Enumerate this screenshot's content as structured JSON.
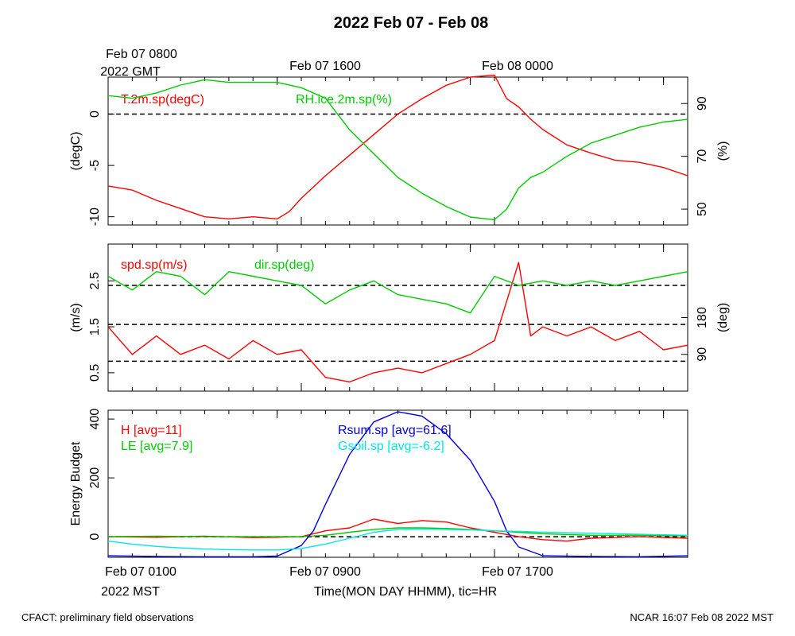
{
  "title": "2022 Feb 07 - Feb 08",
  "top_axis": {
    "ticks": [
      "Feb 07 0800",
      "Feb 07 1600",
      "Feb 08 0000"
    ],
    "second_line": "2022 GMT"
  },
  "bottom_axis": {
    "ticks": [
      "Feb 07 0100",
      "Feb 07 0900",
      "Feb 07 1700"
    ],
    "second_line": "2022 MST",
    "label": "Time(MON DAY HHMM), tic=HR"
  },
  "footer": {
    "left": "CFACT: preliminary field observations",
    "right": "NCAR 16:07 Feb 08 2022 MST"
  },
  "colors": {
    "red": "#ff0000",
    "green": "#00cc00",
    "blue": "#0000dd",
    "cyan": "#00e6e6",
    "axis": "#000000"
  },
  "chart_data": [
    {
      "type": "line",
      "x_hours": [
        0,
        24
      ],
      "left_axis": {
        "label": "(degC)",
        "ylim": [
          -10.8,
          3.6
        ],
        "ticks": [
          0,
          -5,
          -10
        ],
        "ref_lines": [
          0
        ]
      },
      "right_axis": {
        "label": "(%)",
        "ylim": [
          44,
          100
        ],
        "ticks": [
          90,
          70,
          50
        ]
      },
      "series": [
        {
          "name": "T.2m.sp(degC)",
          "color": "red",
          "axis": "left",
          "x": [
            0,
            1,
            2,
            3,
            4,
            5,
            6,
            7,
            7.5,
            8,
            9,
            10,
            11,
            12,
            13,
            14,
            15,
            16,
            16.5,
            17,
            17.5,
            18,
            19,
            20,
            21,
            22,
            23,
            24
          ],
          "values": [
            -7,
            -7.4,
            -8.4,
            -9.2,
            -10,
            -10.2,
            -10,
            -10.2,
            -9.5,
            -8.2,
            -6,
            -4,
            -2,
            0,
            1.5,
            2.8,
            3.6,
            3.8,
            1.5,
            0.7,
            -0.5,
            -1.5,
            -3,
            -3.8,
            -4.5,
            -4.7,
            -5.2,
            -6
          ]
        },
        {
          "name": "RH.ice.2m.sp(%)",
          "color": "green",
          "axis": "right",
          "x": [
            0,
            1,
            2,
            3,
            4,
            5,
            6,
            7,
            8,
            9,
            10,
            11,
            12,
            13,
            14,
            15,
            16,
            16.5,
            17,
            17.5,
            18,
            19,
            20,
            21,
            22,
            23,
            24
          ],
          "values": [
            93,
            92,
            94,
            97,
            99,
            98,
            98,
            98,
            96,
            92,
            80,
            71,
            62,
            56,
            51,
            47,
            46,
            50,
            58,
            62,
            64,
            70,
            75,
            78,
            81,
            83,
            84
          ]
        }
      ]
    },
    {
      "type": "line",
      "x_hours": [
        0,
        24
      ],
      "left_axis": {
        "label": "(m/s)",
        "ylim": [
          0.1,
          3.3
        ],
        "ticks": [
          0.5,
          1.5,
          2.5
        ],
        "ref_lines": [
          0.75,
          1.55,
          2.4
        ]
      },
      "right_axis": {
        "label": "(deg)",
        "ylim": [
          0,
          360
        ],
        "ticks": [
          90,
          180
        ]
      },
      "series": [
        {
          "name": "spd.sp(m/s)",
          "color": "red",
          "axis": "left",
          "x": [
            0,
            1,
            2,
            3,
            4,
            5,
            6,
            7,
            8,
            9,
            10,
            11,
            12,
            13,
            14,
            15,
            16,
            17,
            17.5,
            18,
            19,
            20,
            21,
            22,
            23,
            24
          ],
          "values": [
            1.5,
            0.9,
            1.3,
            0.9,
            1.1,
            0.8,
            1.2,
            0.9,
            1.0,
            0.4,
            0.3,
            0.5,
            0.6,
            0.5,
            0.7,
            0.9,
            1.2,
            2.9,
            1.3,
            1.5,
            1.3,
            1.5,
            1.2,
            1.4,
            1.0,
            1.1
          ]
        },
        {
          "name": "dir.sp(deg)",
          "color": "green",
          "axis": "left",
          "x": [
            0,
            1,
            2,
            3,
            4,
            5,
            6,
            7,
            8,
            9,
            10,
            11,
            12,
            13,
            14,
            15,
            16,
            17,
            18,
            19,
            20,
            21,
            22,
            23,
            24
          ],
          "values": [
            2.6,
            2.3,
            2.7,
            2.6,
            2.2,
            2.7,
            2.6,
            2.5,
            2.4,
            2.0,
            2.3,
            2.5,
            2.2,
            2.1,
            2.0,
            1.8,
            2.6,
            2.4,
            2.5,
            2.4,
            2.5,
            2.4,
            2.5,
            2.6,
            2.7
          ]
        }
      ]
    },
    {
      "type": "line",
      "x_hours": [
        0,
        24
      ],
      "left_axis": {
        "label": "Energy Budget",
        "ylim": [
          -70,
          430
        ],
        "ticks": [
          0,
          200,
          400
        ],
        "ref_lines": [
          0
        ]
      },
      "series": [
        {
          "name": "H [avg=11]",
          "color": "red",
          "x": [
            0,
            2,
            4,
            6,
            7,
            8,
            9,
            10,
            11,
            12,
            13,
            14,
            15,
            16,
            17,
            18,
            19,
            20,
            22,
            24
          ],
          "values": [
            0,
            -2,
            2,
            -3,
            -2,
            0,
            20,
            30,
            60,
            45,
            55,
            50,
            30,
            15,
            0,
            -10,
            -15,
            -5,
            0,
            -5
          ]
        },
        {
          "name": "LE [avg=7.9]",
          "color": "green",
          "x": [
            0,
            2,
            4,
            6,
            7,
            8,
            9,
            10,
            11,
            12,
            13,
            14,
            15,
            16,
            17,
            18,
            20,
            22,
            24
          ],
          "values": [
            0,
            2,
            0,
            0,
            0,
            0,
            5,
            15,
            25,
            30,
            30,
            28,
            25,
            20,
            15,
            10,
            5,
            5,
            3
          ]
        },
        {
          "name": "Rsum.sp [avg=61.6]",
          "color": "blue",
          "x": [
            0,
            2,
            4,
            6,
            7,
            8,
            8.5,
            9,
            10,
            11,
            12,
            13,
            14,
            15,
            16,
            16.5,
            17,
            18,
            20,
            22,
            24
          ],
          "values": [
            -65,
            -67,
            -68,
            -68,
            -66,
            -30,
            20,
            110,
            280,
            390,
            425,
            410,
            350,
            260,
            120,
            20,
            -35,
            -65,
            -67,
            -68,
            -65
          ]
        },
        {
          "name": "Gsoil.sp [avg=-6.2]",
          "color": "cyan",
          "x": [
            0,
            1,
            2,
            3,
            4,
            5,
            6,
            7,
            8,
            9,
            10,
            11,
            12,
            13,
            14,
            15,
            16,
            17,
            18,
            20,
            22,
            24
          ],
          "values": [
            -15,
            -25,
            -33,
            -38,
            -42,
            -44,
            -45,
            -45,
            -40,
            -25,
            -5,
            15,
            25,
            26,
            25,
            23,
            20,
            18,
            15,
            12,
            8,
            5
          ]
        }
      ]
    }
  ]
}
